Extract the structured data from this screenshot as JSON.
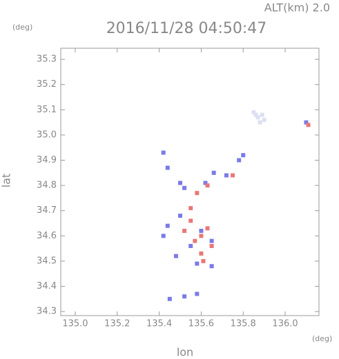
{
  "chart_data": {
    "type": "scatter",
    "corner_label": "ALT(km) 2.0",
    "title": "2016/11/28 04:50:47",
    "y_unit": "(deg)",
    "x_unit": "(deg)",
    "xlabel": "lon",
    "ylabel": "lat",
    "xlim": [
      134.931,
      136.161
    ],
    "ylim": [
      34.284,
      35.344
    ],
    "xticks": [
      {
        "value": 135.0,
        "label": "135.0"
      },
      135.2,
      135.4,
      135.6,
      135.8,
      {
        "value": 136.0,
        "label": "136.0"
      }
    ],
    "yticks": [
      35.3,
      35.2,
      35.1,
      {
        "value": 35.0,
        "label": "35.0"
      },
      34.9,
      34.8,
      34.7,
      34.6,
      34.5,
      34.4,
      34.3
    ],
    "series": [
      {
        "color": "#7a7ae8",
        "x": [
          135.42,
          135.44,
          135.5,
          135.52,
          135.62,
          135.66,
          135.72,
          135.78,
          135.8,
          135.44,
          135.42,
          135.55,
          135.6,
          135.65,
          135.5,
          135.48,
          135.58,
          135.65,
          135.45,
          135.52,
          135.58,
          136.1
        ],
        "y": [
          34.93,
          34.87,
          34.81,
          34.79,
          34.81,
          34.85,
          34.84,
          34.9,
          34.92,
          34.64,
          34.6,
          34.56,
          34.62,
          34.58,
          34.68,
          34.52,
          34.49,
          34.48,
          34.35,
          34.36,
          34.37,
          35.05
        ]
      },
      {
        "color": "#e87878",
        "x": [
          135.58,
          135.63,
          135.75,
          135.55,
          135.6,
          135.63,
          135.57,
          135.65,
          135.52,
          135.6,
          135.61,
          135.55,
          136.11
        ],
        "y": [
          34.77,
          34.8,
          34.84,
          34.66,
          34.6,
          34.63,
          34.58,
          34.56,
          34.62,
          34.53,
          34.5,
          34.71,
          35.04
        ]
      },
      {
        "color": "#dde0f2",
        "x": [
          135.87,
          135.88,
          135.85,
          135.89,
          135.86,
          135.9
        ],
        "y": [
          35.07,
          35.05,
          35.09,
          35.08,
          35.08,
          35.06
        ]
      }
    ]
  }
}
